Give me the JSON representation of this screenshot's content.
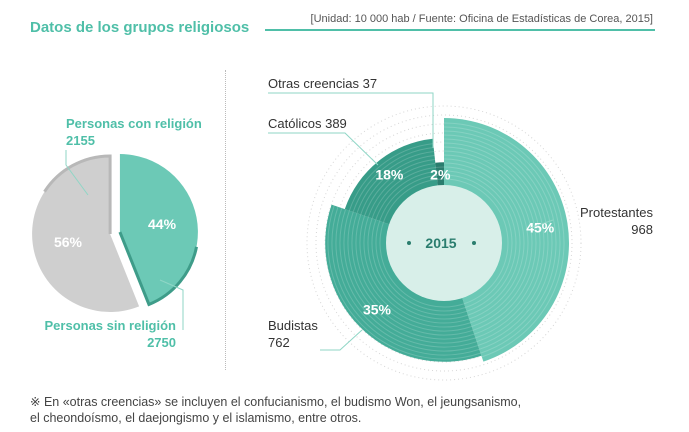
{
  "title": "Datos de los grupos religiosos",
  "source": "[Unidad: 10 000 hab / Fuente: Oficina de Estadísticas de Corea, 2015]",
  "footnote_line1": "※ En «otras creencias» se incluyen el confucianismo, el budismo Won, el jeungsanismo,",
  "footnote_line2": "el cheondoísmo, el daejongismo y el islamismo, entre otros.",
  "chart_data": [
    {
      "type": "pie",
      "categories": [
        "Personas con religión",
        "Personas sin religión"
      ],
      "values": [
        2155,
        2750
      ],
      "percent_labels": [
        "44%",
        "56%"
      ],
      "colors": [
        "#6cc9b6",
        "#cfcfcf"
      ],
      "value_labels": [
        "2155",
        "2750"
      ]
    },
    {
      "type": "pie",
      "title": "2015",
      "categories": [
        "Protestantes",
        "Budistas",
        "Católicos",
        "Otras creencias"
      ],
      "values": [
        968,
        762,
        389,
        37
      ],
      "percent_labels": [
        "45%",
        "35%",
        "18%",
        "2%"
      ],
      "colors": [
        "#6cc9b6",
        "#44ac98",
        "#379c88",
        "#2a7d6e"
      ],
      "value_labels": [
        "968",
        "762",
        "389",
        "37"
      ]
    }
  ]
}
